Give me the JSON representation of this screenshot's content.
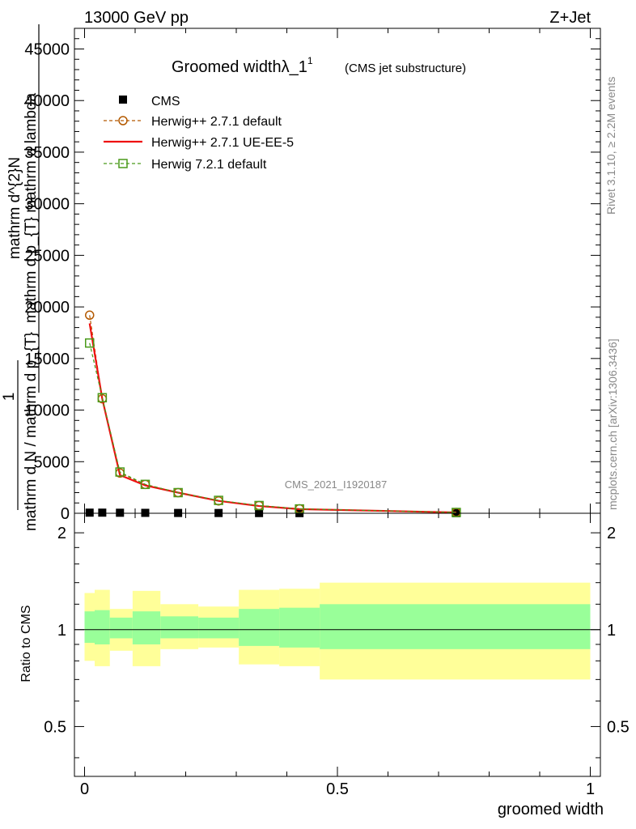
{
  "header": {
    "energy_label": "13000 GeV pp",
    "process_label": "Z+Jet"
  },
  "side": {
    "rivet_label": "Rivet 3.1.10, ≥ 2.2M events",
    "mcplots_label": "mcplots.cern.ch [arXiv:1306.3436]"
  },
  "watermark": "CMS_2021_I1920187",
  "chart_data": [
    {
      "type": "line",
      "title": "Groomed widthλ_1",
      "title_sup": "1",
      "subtitle": "(CMS jet substructure)",
      "ylabel_lines": [
        "mathrm d",
        "mathrm d p",
        "mathrm d lambda",
        "1",
        "mathrm d N",
        "mathrm d p",
        "mathrm d lambda",
        "mathrm dN",
        "mathrm d N",
        "mathrm d lambda"
      ],
      "ylabel_top": "mathrm d^{2}N",
      "ylabel_mid": "mathrm d p_{T} mathrm d lambda",
      "ylabel_one": "1",
      "ylabel_bottom": "mathrm d N / mathrm d p_{T}",
      "xlim": [
        -0.02,
        1.02
      ],
      "ylim": [
        0,
        47000
      ],
      "yticks": [
        0,
        5000,
        10000,
        15000,
        20000,
        25000,
        30000,
        35000,
        40000,
        45000
      ],
      "ytick_labels": [
        "0",
        "5000",
        "10000",
        "15000",
        "20000",
        "25000",
        "30000",
        "35000",
        "40000",
        "45000"
      ],
      "legend": [
        "CMS",
        "Herwig++ 2.7.1 default",
        "Herwig++ 2.7.1 UE-EE-5",
        "Herwig 7.2.1 default"
      ],
      "legend_position": "top-left",
      "series": [
        {
          "name": "CMS",
          "color": "#000000",
          "marker": "square",
          "x": [
            0.01,
            0.035,
            0.07,
            0.12,
            0.185,
            0.265,
            0.345,
            0.425,
            0.735
          ],
          "y": [
            60,
            60,
            50,
            40,
            30,
            25,
            20,
            15,
            10
          ]
        },
        {
          "name": "Herwig++ 2.7.1 default",
          "color": "#b35900",
          "marker": "circle",
          "dash": true,
          "x": [
            0.01,
            0.035,
            0.07,
            0.12,
            0.185,
            0.265,
            0.345,
            0.425,
            0.735
          ],
          "y": [
            19200,
            11100,
            3900,
            2800,
            2000,
            1200,
            750,
            430,
            80
          ]
        },
        {
          "name": "Herwig++ 2.7.1 UE-EE-5",
          "color": "#ee1111",
          "marker": "none",
          "dash": false,
          "x": [
            0.01,
            0.035,
            0.07,
            0.12,
            0.185,
            0.265,
            0.345,
            0.425,
            0.735
          ],
          "y": [
            18400,
            11100,
            3700,
            2700,
            2000,
            1200,
            700,
            400,
            80
          ]
        },
        {
          "name": "Herwig 7.2.1 default",
          "color": "#4a9a1a",
          "marker": "square-open",
          "dash": true,
          "x": [
            0.01,
            0.035,
            0.07,
            0.12,
            0.185,
            0.265,
            0.345,
            0.425,
            0.735
          ],
          "y": [
            16500,
            11200,
            4000,
            2800,
            2000,
            1250,
            750,
            420,
            80
          ]
        }
      ]
    },
    {
      "type": "area",
      "ylabel": "Ratio to CMS",
      "xlabel": "groomed width",
      "xlim": [
        -0.02,
        1.02
      ],
      "ylim": [
        0.35,
        2.3
      ],
      "yscale": "log",
      "yticks": [
        0.5,
        1,
        2
      ],
      "ytick_labels": [
        "0.5",
        "1",
        "2"
      ],
      "xticks": [
        0,
        0.5,
        1
      ],
      "xtick_labels": [
        "0",
        "0.5",
        "1"
      ],
      "bins": [
        {
          "lo": 0.0,
          "hi": 0.02,
          "stat_lo": 0.91,
          "stat_hi": 1.14,
          "tot_lo": 0.8,
          "tot_hi": 1.3
        },
        {
          "lo": 0.02,
          "hi": 0.05,
          "stat_lo": 0.9,
          "stat_hi": 1.15,
          "tot_lo": 0.77,
          "tot_hi": 1.33
        },
        {
          "lo": 0.05,
          "hi": 0.095,
          "stat_lo": 0.94,
          "stat_hi": 1.09,
          "tot_lo": 0.86,
          "tot_hi": 1.16
        },
        {
          "lo": 0.095,
          "hi": 0.15,
          "stat_lo": 0.9,
          "stat_hi": 1.14,
          "tot_lo": 0.77,
          "tot_hi": 1.32
        },
        {
          "lo": 0.15,
          "hi": 0.225,
          "stat_lo": 0.94,
          "stat_hi": 1.1,
          "tot_lo": 0.87,
          "tot_hi": 1.2
        },
        {
          "lo": 0.225,
          "hi": 0.305,
          "stat_lo": 0.94,
          "stat_hi": 1.09,
          "tot_lo": 0.88,
          "tot_hi": 1.18
        },
        {
          "lo": 0.305,
          "hi": 0.385,
          "stat_lo": 0.89,
          "stat_hi": 1.16,
          "tot_lo": 0.78,
          "tot_hi": 1.33
        },
        {
          "lo": 0.385,
          "hi": 0.465,
          "stat_lo": 0.88,
          "stat_hi": 1.17,
          "tot_lo": 0.77,
          "tot_hi": 1.34
        },
        {
          "lo": 0.465,
          "hi": 1.0,
          "stat_lo": 0.87,
          "stat_hi": 1.2,
          "tot_lo": 0.7,
          "tot_hi": 1.4
        }
      ],
      "reference": 1,
      "stat_color": "#99ff99",
      "tot_color": "#ffff99"
    }
  ]
}
